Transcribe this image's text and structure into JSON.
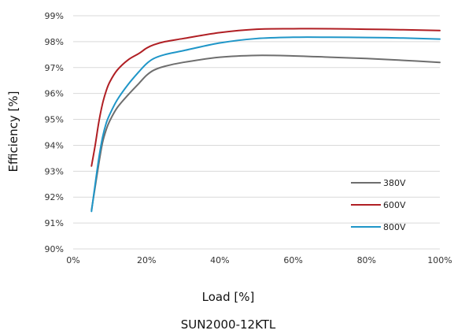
{
  "chart_data": {
    "type": "line",
    "title": "SUN2000-12KTL",
    "xlabel": "Load [%]",
    "ylabel": "Efficiency [%]",
    "xlim": [
      0,
      100
    ],
    "ylim": [
      90,
      99
    ],
    "x_ticks": [
      "0%",
      "20%",
      "40%",
      "60%",
      "80%",
      "100%"
    ],
    "y_ticks": [
      "90%",
      "91%",
      "92%",
      "93%",
      "94%",
      "95%",
      "96%",
      "97%",
      "98%",
      "99%"
    ],
    "grid": true,
    "legend_position": "bottom-right",
    "series": [
      {
        "name": "380V",
        "color": "#6e6e6e",
        "x": [
          5,
          6,
          7,
          8,
          9,
          10,
          12,
          15,
          18,
          20,
          22,
          25,
          30,
          40,
          50,
          60,
          70,
          80,
          90,
          100
        ],
        "y": [
          91.5,
          92.4,
          93.3,
          94.1,
          94.6,
          94.95,
          95.45,
          95.95,
          96.4,
          96.7,
          96.9,
          97.05,
          97.2,
          97.4,
          97.47,
          97.45,
          97.4,
          97.35,
          97.28,
          97.2
        ]
      },
      {
        "name": "600V",
        "color": "#b01f24",
        "x": [
          5,
          6,
          7,
          8,
          9,
          10,
          12,
          15,
          18,
          20,
          22,
          25,
          30,
          40,
          50,
          60,
          70,
          80,
          90,
          100
        ],
        "y": [
          93.2,
          94.0,
          94.9,
          95.6,
          96.1,
          96.45,
          96.9,
          97.3,
          97.55,
          97.75,
          97.88,
          98.0,
          98.12,
          98.35,
          98.48,
          98.5,
          98.5,
          98.48,
          98.46,
          98.43
        ]
      },
      {
        "name": "800V",
        "color": "#1f96c8",
        "x": [
          5,
          6,
          7,
          8,
          9,
          10,
          12,
          15,
          18,
          20,
          22,
          25,
          30,
          40,
          50,
          60,
          70,
          80,
          90,
          100
        ],
        "y": [
          91.45,
          92.5,
          93.5,
          94.3,
          94.85,
          95.2,
          95.75,
          96.35,
          96.85,
          97.15,
          97.35,
          97.5,
          97.65,
          97.95,
          98.12,
          98.17,
          98.17,
          98.16,
          98.14,
          98.1
        ]
      }
    ]
  }
}
